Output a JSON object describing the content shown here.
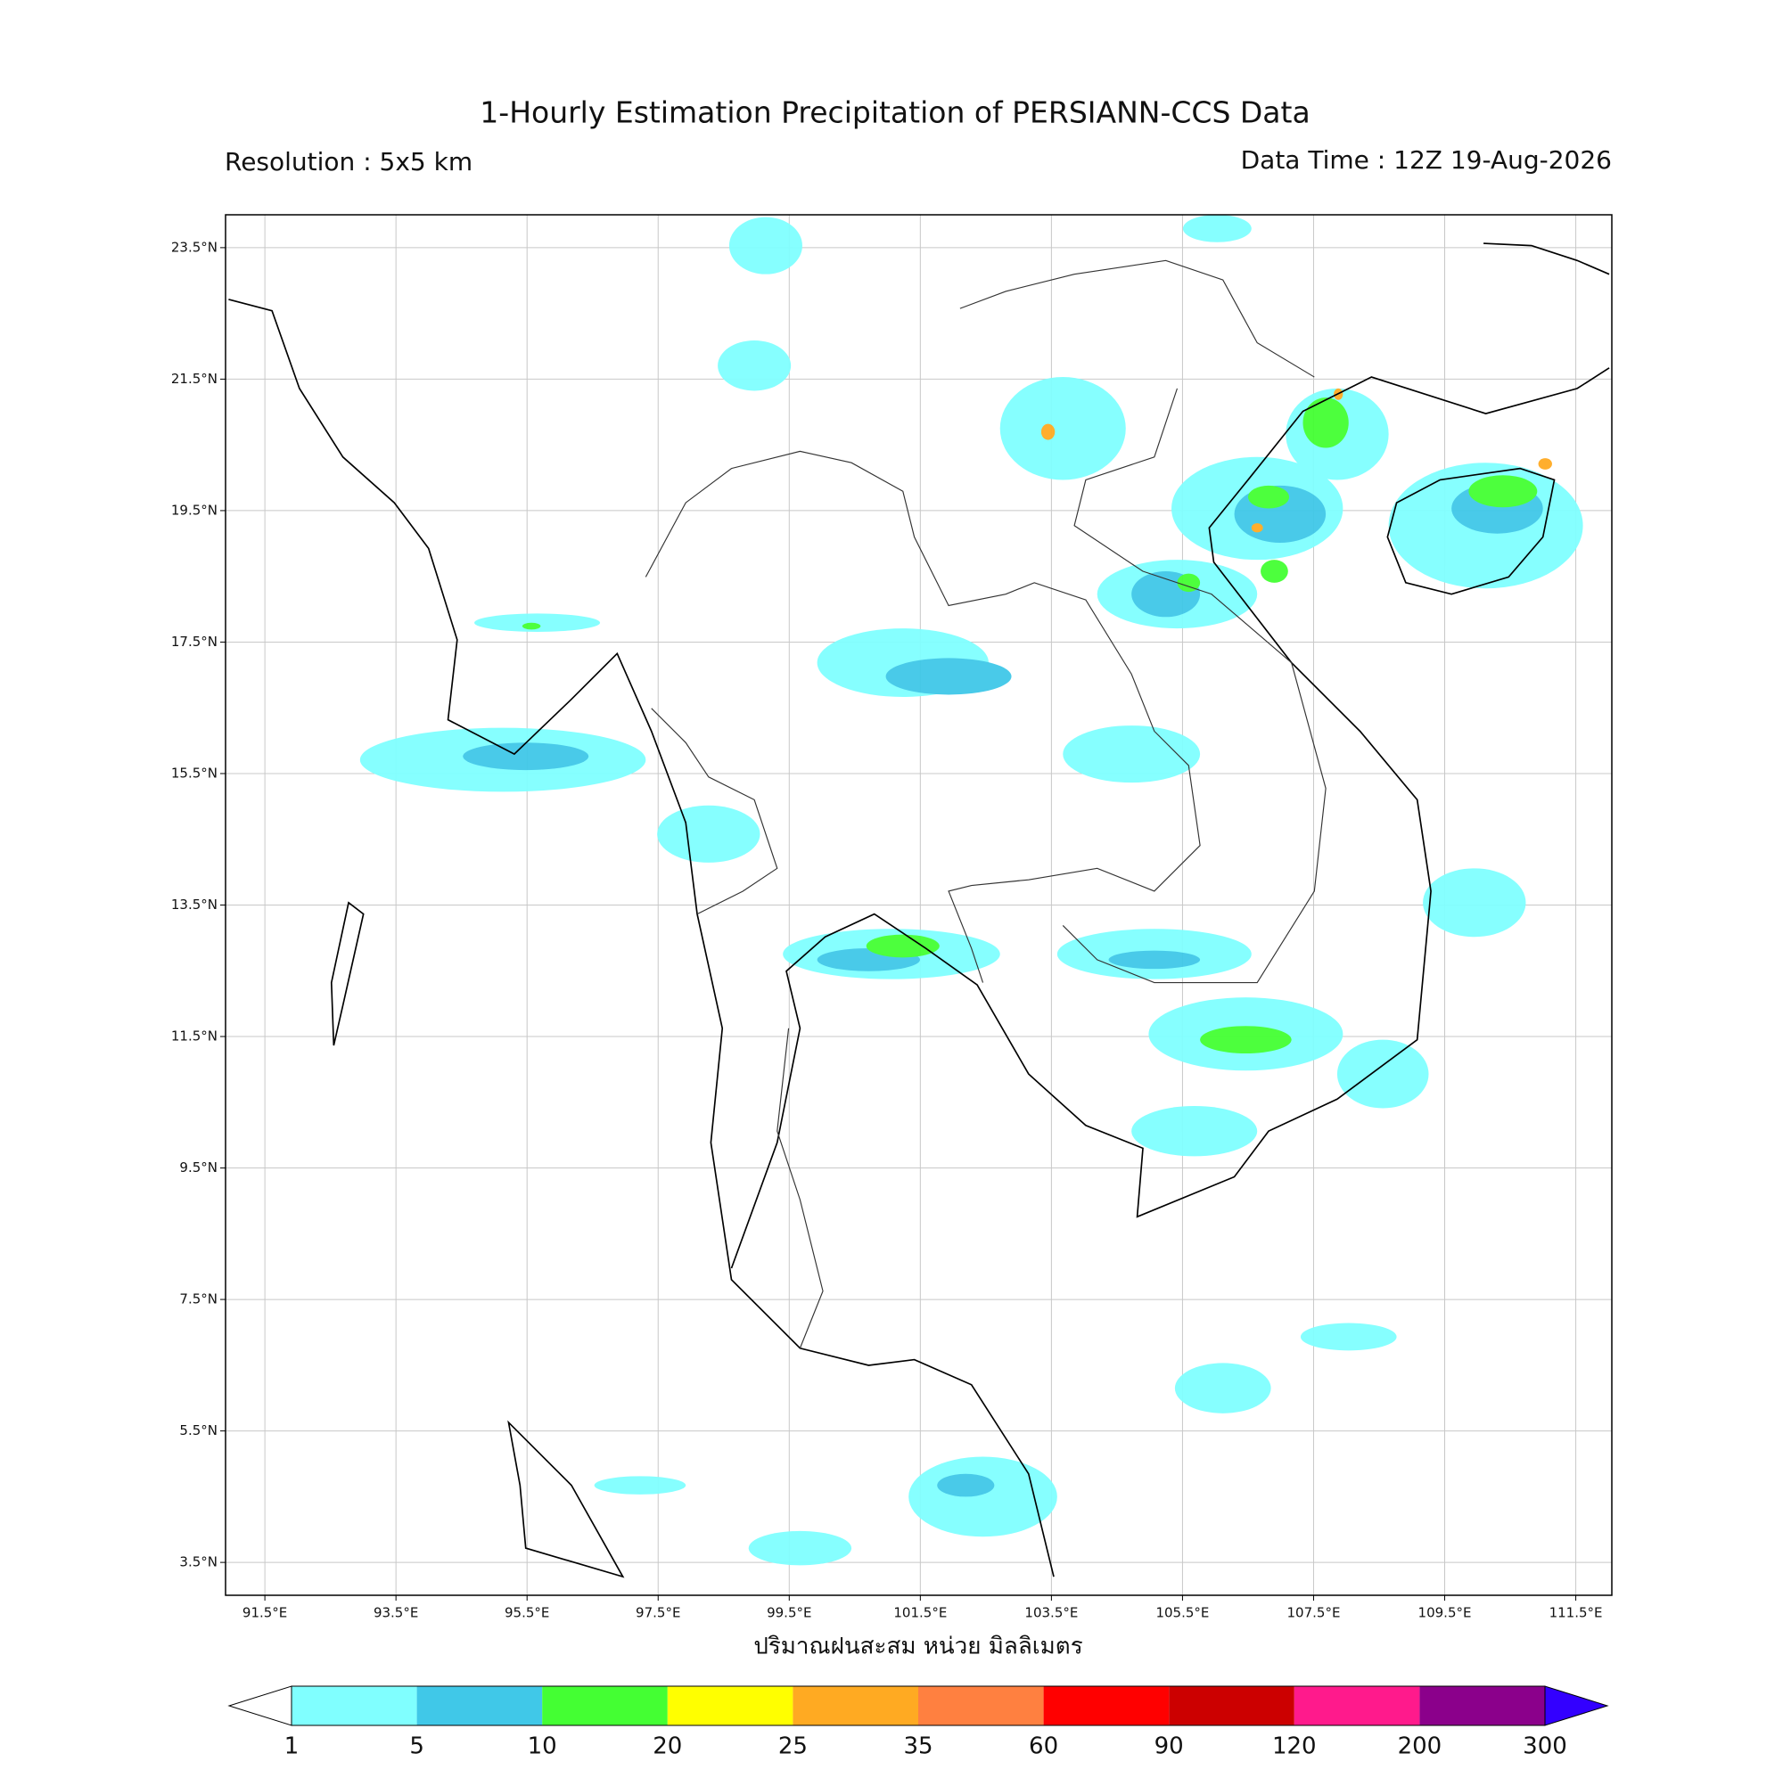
{
  "header": {
    "title": "1-Hourly Estimation Precipitation of PERSIANN-CCS Data",
    "resolution": "Resolution : 5x5 km",
    "data_time": "Data Time : 12Z 19-Aug-2026"
  },
  "map": {
    "lonlim": [
      90.9,
      112.05
    ],
    "latlim": [
      3.0,
      24.0
    ],
    "lon_ticks": [
      {
        "value": 91.5,
        "label": "91.5°E"
      },
      {
        "value": 93.5,
        "label": "93.5°E"
      },
      {
        "value": 95.5,
        "label": "95.5°E"
      },
      {
        "value": 97.5,
        "label": "97.5°E"
      },
      {
        "value": 99.5,
        "label": "99.5°E"
      },
      {
        "value": 101.5,
        "label": "101.5°E"
      },
      {
        "value": 103.5,
        "label": "103.5°E"
      },
      {
        "value": 105.5,
        "label": "105.5°E"
      },
      {
        "value": 107.5,
        "label": "107.5°E"
      },
      {
        "value": 109.5,
        "label": "109.5°E"
      },
      {
        "value": 111.5,
        "label": "111.5°E"
      }
    ],
    "lat_ticks": [
      {
        "value": 23.5,
        "label": "23.5°N"
      },
      {
        "value": 21.5,
        "label": "21.5°N"
      },
      {
        "value": 19.5,
        "label": "19.5°N"
      },
      {
        "value": 17.5,
        "label": "17.5°N"
      },
      {
        "value": 15.5,
        "label": "15.5°N"
      },
      {
        "value": 13.5,
        "label": "13.5°N"
      },
      {
        "value": 11.5,
        "label": "11.5°N"
      },
      {
        "value": 9.5,
        "label": "9.5°N"
      },
      {
        "value": 7.5,
        "label": "7.5°N"
      },
      {
        "value": 5.5,
        "label": "5.5°N"
      },
      {
        "value": 3.5,
        "label": "3.5°N"
      }
    ],
    "grid": true
  },
  "colorbar": {
    "label": "ปริมาณฝนสะสม หน่วย มิลลิเมตร",
    "levels": [
      1,
      5,
      10,
      20,
      25,
      35,
      60,
      90,
      120,
      200,
      300
    ],
    "colors": [
      "#80ffff",
      "#40c8e8",
      "#44ff33",
      "#ffff00",
      "#ffaa22",
      "#ff8040",
      "#ff0000",
      "#cc0000",
      "#ff1a8c",
      "#8b008b"
    ],
    "under_color": "#ffffff",
    "over_color": "#3300ff"
  }
}
